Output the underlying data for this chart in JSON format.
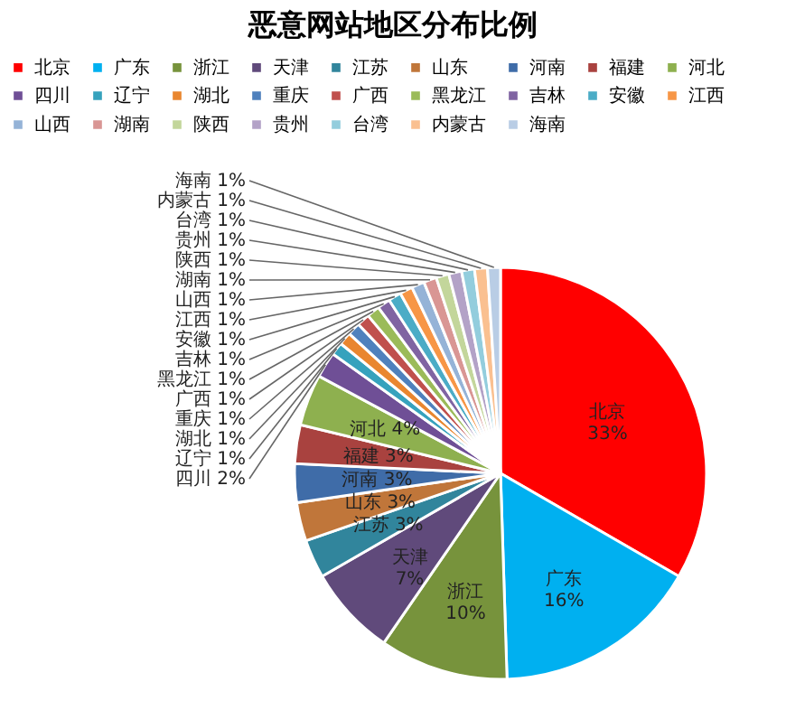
{
  "chart_data": {
    "type": "pie",
    "title": "恶意网站地区分布比例",
    "categories": [
      "北京",
      "广东",
      "浙江",
      "天津",
      "江苏",
      "山东",
      "河南",
      "福建",
      "河北",
      "四川",
      "辽宁",
      "湖北",
      "重庆",
      "广西",
      "黑龙江",
      "吉林",
      "安徽",
      "江西",
      "山西",
      "湖南",
      "陕西",
      "贵州",
      "台湾",
      "内蒙古",
      "海南"
    ],
    "values": [
      33,
      16,
      10,
      7,
      3,
      3,
      3,
      3,
      4,
      2,
      1,
      1,
      1,
      1,
      1,
      1,
      1,
      1,
      1,
      1,
      1,
      1,
      1,
      1,
      1
    ],
    "value_labels": [
      "33%",
      "16%",
      "10%",
      "7%",
      "3%",
      "3%",
      "3%",
      "3%",
      "4%",
      "2%",
      "1%",
      "1%",
      "1%",
      "1%",
      "1%",
      "1%",
      "1%",
      "1%",
      "1%",
      "1%",
      "1%",
      "1%",
      "1%",
      "1%",
      "1%"
    ],
    "colors": [
      "#ff0000",
      "#00b0f0",
      "#77933c",
      "#604a7b",
      "#31859c",
      "#c0763a",
      "#3f6ca8",
      "#a9423f",
      "#8eb04f",
      "#6f4f96",
      "#36a2bd",
      "#e9862f",
      "#4f81bd",
      "#c0504d",
      "#9bbb59",
      "#8064a2",
      "#4bacc6",
      "#f79646",
      "#95b3d7",
      "#d99694",
      "#c3d69b",
      "#b3a2c7",
      "#93cddd",
      "#fac090",
      "#b9cde5"
    ],
    "legend": "top"
  }
}
